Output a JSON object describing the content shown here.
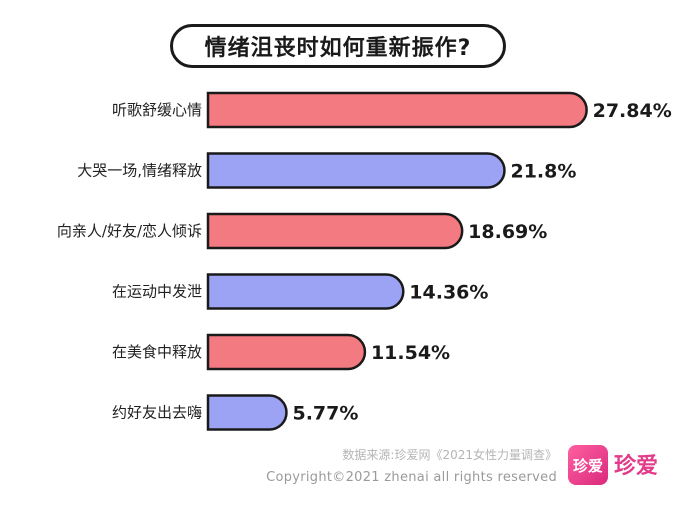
{
  "chart_data": {
    "type": "bar",
    "orientation": "horizontal",
    "title": "情绪沮丧时如何重新振作?",
    "categories": [
      "听歌舒缓心情",
      "大哭一场,情绪释放",
      "向亲人/好友/恋人倾诉",
      "在运动中发泄",
      "在美食中释放",
      "约好友出去嗨"
    ],
    "values": [
      27.84,
      21.8,
      18.69,
      14.36,
      11.54,
      5.77
    ],
    "value_labels": [
      "27.84%",
      "21.8%",
      "18.69%",
      "14.36%",
      "11.54%",
      "5.77%"
    ],
    "xlim": [
      0,
      30
    ],
    "grid": false,
    "colors": [
      "#f47a82",
      "#9da3f4"
    ],
    "border_color": "#1a1a1a"
  },
  "source": "数据来源:珍爱网《2021女性力量调查》",
  "copyright": "Copyright©2021  zhenai  all rights reserved",
  "logo": {
    "icon_text": "珍爱",
    "text": "珍爱",
    "color": "#e23b8a"
  }
}
